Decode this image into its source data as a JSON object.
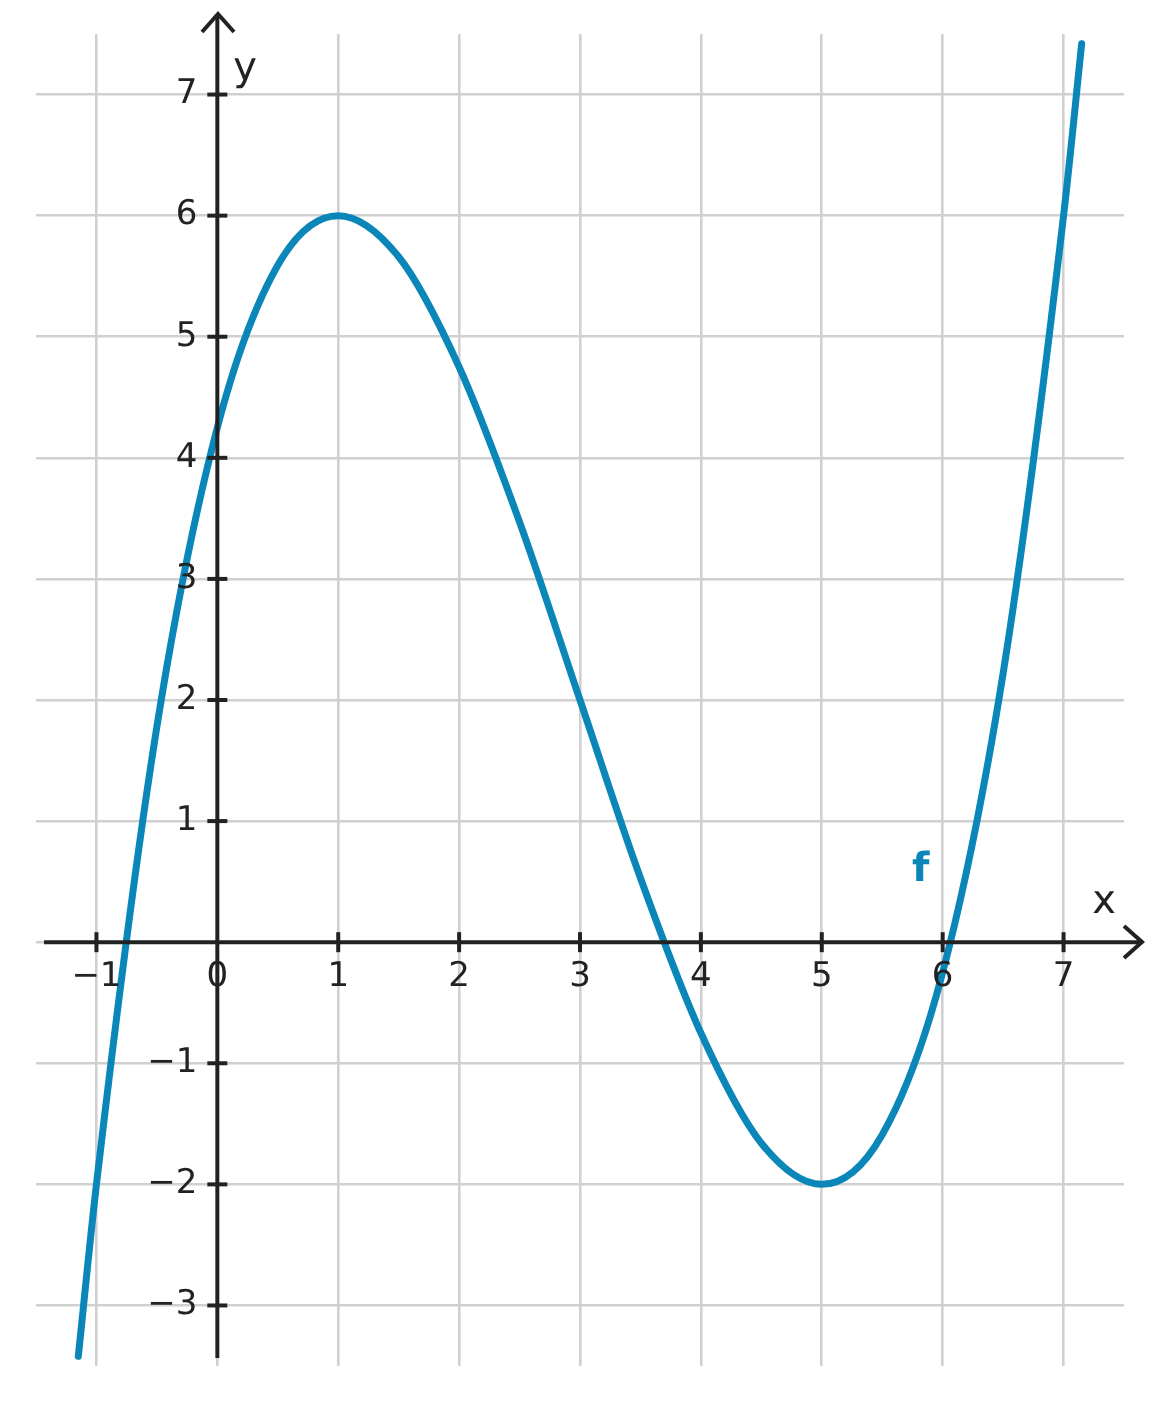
{
  "chart_data": {
    "type": "line",
    "xlabel": "x",
    "ylabel": "y",
    "x": [
      -1.15,
      -1,
      -0.5,
      0,
      0.5,
      1,
      1.5,
      2,
      2.5,
      3,
      3.5,
      4,
      4.5,
      5,
      5.5,
      6,
      6.5,
      7,
      7.15
    ],
    "series": [
      {
        "name": "f",
        "color": "#0a86b8",
        "values": [
          -3.42,
          -2,
          1.78,
          4.25,
          5.59,
          6,
          5.66,
          4.75,
          3.47,
          2,
          0.53,
          -0.75,
          -1.66,
          -2,
          -1.59,
          -0.25,
          2.22,
          6,
          7.42
        ]
      }
    ],
    "xlim": [
      -1.5,
      7.5
    ],
    "ylim": [
      -3.5,
      7.5
    ],
    "xticks": [
      -1,
      0,
      1,
      2,
      3,
      4,
      5,
      6,
      7
    ],
    "yticks": [
      -3,
      -2,
      -1,
      {
        "value": 0,
        "label": null
      },
      1,
      2,
      3,
      4,
      5,
      6,
      7
    ],
    "grid": true,
    "legend": false,
    "marker": "none",
    "line_style": "solid"
  }
}
